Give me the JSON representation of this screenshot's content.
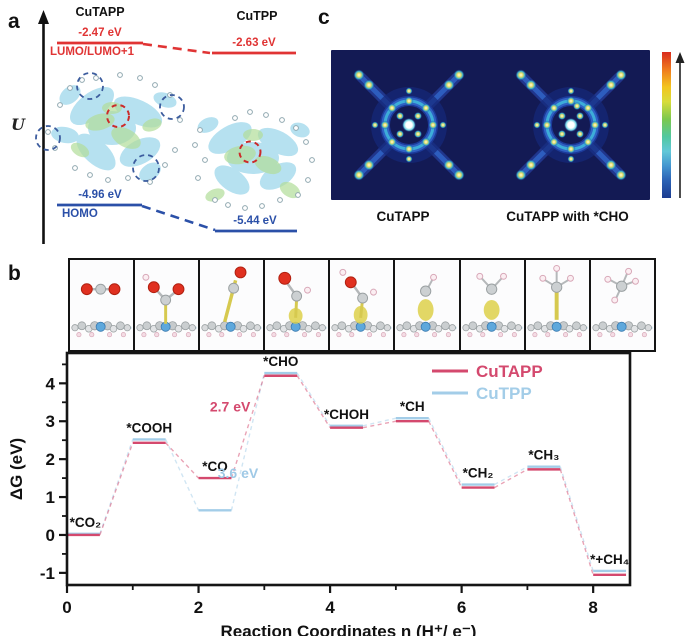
{
  "panel_a": {
    "label": "a",
    "axis_label": "U",
    "lumo": {
      "title_left": "CuTAPP",
      "title_right": "CuTPP",
      "left_value": "-2.47 eV",
      "right_value": "-2.63 eV",
      "level_label": "LUMO/LUMO+1",
      "color": "#e03434"
    },
    "homo": {
      "left_value": "-4.96 eV",
      "right_value": "-5.44 eV",
      "level_label": "HOMO",
      "color": "#2b50a8"
    }
  },
  "panel_c": {
    "label": "c",
    "caption_left": "CuTAPP",
    "caption_right": "CuTAPP with *CHO",
    "icons": [
      "density-map",
      "density-map-with-cho",
      "colorbar",
      "up-arrow"
    ]
  },
  "panel_b": {
    "label": "b",
    "structure_icons": [
      "co2-molecule",
      "cooh-adsorbate",
      "co-adsorbate",
      "cho-adsorbate",
      "choh-adsorbate",
      "ch-adsorbate",
      "ch2-adsorbate",
      "ch3-adsorbate",
      "ch4-molecule"
    ]
  },
  "chart_data": {
    "type": "line",
    "subtype": "free-energy-step-diagram",
    "title": "",
    "xlabel": "Reaction Coordinates n (H⁺/ e⁻)",
    "ylabel": "ΔG (eV)",
    "xlim": [
      0,
      8.56
    ],
    "ylim": [
      -1.32,
      4.8
    ],
    "xticks": [
      0,
      2,
      4,
      6,
      8
    ],
    "xticks_minor": [
      1,
      3,
      5,
      7
    ],
    "yticks": [
      -1,
      0,
      1,
      2,
      3,
      4
    ],
    "yticks_minor": [
      -0.5,
      0.5,
      1.5,
      2.5,
      3.5,
      4.5
    ],
    "grid": false,
    "legend_position": "top-right",
    "categories": [
      "*CO₂",
      "*COOH",
      "*CO",
      "*CHO",
      "*CHOH",
      "*CH",
      "*CH₂",
      "*CH₃",
      "*+CH₄"
    ],
    "x_start": [
      0,
      1,
      2,
      3,
      4,
      5,
      6,
      7,
      8
    ],
    "step_width": 0.5,
    "series": [
      {
        "name": "CuTPP",
        "color": "#a3cde8",
        "values": [
          0.03,
          2.52,
          0.65,
          4.27,
          2.88,
          3.08,
          1.33,
          1.8,
          -0.95
        ]
      },
      {
        "name": "CuTAPP",
        "color": "#d4496e",
        "values": [
          0.0,
          2.43,
          1.5,
          4.2,
          2.83,
          3.0,
          1.25,
          1.73,
          -1.05
        ]
      }
    ],
    "annotations": [
      {
        "text": "2.7 eV",
        "x": 2.48,
        "y": 3.26,
        "color": "#d4496e"
      },
      {
        "text": "3.6 eV",
        "x": 2.6,
        "y": 1.5,
        "color": "#9fc9e6"
      }
    ]
  }
}
